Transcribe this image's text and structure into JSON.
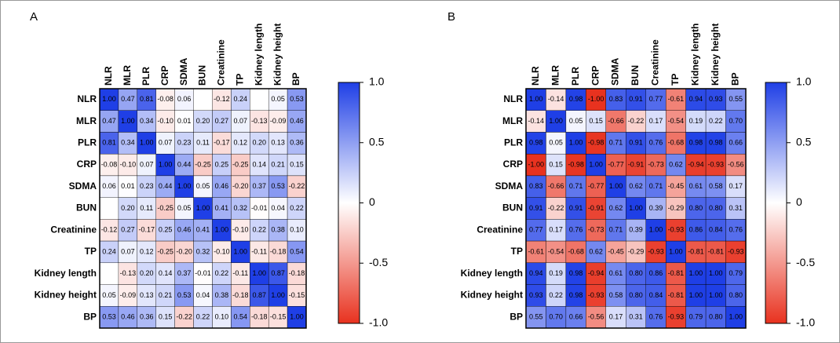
{
  "chart_data": [
    {
      "type": "heatmap",
      "title": "A",
      "categories": [
        "NLR",
        "MLR",
        "PLR",
        "CRP",
        "SDMA",
        "BUN",
        "Creatinine",
        "TP",
        "Kidney length",
        "Kidney height",
        "BP"
      ],
      "values": [
        [
          1.0,
          0.47,
          0.81,
          -0.08,
          0.06,
          null,
          -0.12,
          0.24,
          null,
          0.05,
          0.53
        ],
        [
          0.47,
          1.0,
          0.34,
          -0.1,
          0.01,
          0.2,
          0.27,
          0.07,
          -0.13,
          -0.09,
          0.46
        ],
        [
          0.81,
          0.34,
          1.0,
          0.07,
          0.23,
          0.11,
          -0.17,
          0.12,
          0.2,
          0.13,
          0.36
        ],
        [
          -0.08,
          -0.1,
          0.07,
          1.0,
          0.44,
          -0.25,
          0.25,
          -0.25,
          0.14,
          0.21,
          0.15
        ],
        [
          0.06,
          0.01,
          0.23,
          0.44,
          1.0,
          0.05,
          0.46,
          -0.2,
          0.37,
          0.53,
          -0.22
        ],
        [
          null,
          0.2,
          0.11,
          -0.25,
          0.05,
          1.0,
          0.41,
          0.32,
          -0.01,
          0.04,
          0.22
        ],
        [
          -0.12,
          0.27,
          -0.17,
          0.25,
          0.46,
          0.41,
          1.0,
          -0.1,
          0.22,
          0.38,
          0.1
        ],
        [
          0.24,
          0.07,
          0.12,
          -0.25,
          -0.2,
          0.32,
          -0.1,
          1.0,
          -0.11,
          -0.18,
          0.54
        ],
        [
          null,
          -0.13,
          0.2,
          0.14,
          0.37,
          -0.01,
          0.22,
          -0.11,
          1.0,
          0.87,
          -0.18
        ],
        [
          0.05,
          -0.09,
          0.13,
          0.21,
          0.53,
          0.04,
          0.38,
          -0.18,
          0.87,
          1.0,
          -0.15
        ],
        [
          0.53,
          0.46,
          0.36,
          0.15,
          -0.22,
          0.22,
          0.1,
          0.54,
          -0.18,
          -0.15,
          1.0
        ]
      ],
      "value_labels": [
        [
          "1.00",
          "0.47",
          "0.81",
          "-0.08",
          "0.06",
          null,
          "-0.12",
          "0.24",
          null,
          "0.05",
          "0.53"
        ],
        [
          "0.47",
          "1.00",
          "0.34",
          "-0.10",
          "0.01",
          "0.20",
          "0.27",
          "0.07",
          "-0.13",
          "-0.09",
          "0.46"
        ],
        [
          "0.81",
          "0.34",
          "1.00",
          "0.07",
          "0.23",
          "0.11",
          "-0.17",
          "0.12",
          "0.20",
          "0.13",
          "0.36"
        ],
        [
          "-0.08",
          "-0.10",
          "0.07",
          "1.00",
          "0.44",
          "-0.25",
          "0.25",
          "-0.25",
          "0.14",
          "0.21",
          "0.15"
        ],
        [
          "0.06",
          "0.01",
          "0.23",
          "0.44",
          "1.00",
          "0.05",
          "0.46",
          "-0.20",
          "0.37",
          "0.53",
          "-0.22"
        ],
        [
          null,
          "0.20",
          "0.11",
          "-0.25",
          "0.05",
          "1.00",
          "0.41",
          "0.32",
          "-0.01",
          "0.04",
          "0.22"
        ],
        [
          "-0.12",
          "0.27",
          "-0.17",
          "0.25",
          "0.46",
          "0.41",
          "1.00",
          "-0.10",
          "0.22",
          "0.38",
          "0.10"
        ],
        [
          "0.24",
          "0.07",
          "0.12",
          "-0.25",
          "-0.20",
          "0.32",
          "-0.10",
          "1.00",
          "-0.11",
          "-0.18",
          "0.54"
        ],
        [
          null,
          "-0.13",
          "0.20",
          "0.14",
          "0.37",
          "-0.01",
          "0.22",
          "-0.11",
          "1.00",
          "0.87",
          "-0.18"
        ],
        [
          "0.05",
          "-0.09",
          "0.13",
          "0.21",
          "0.53",
          "0.04",
          "0.38",
          "-0.18",
          "0.87",
          "1.00",
          "-0.15"
        ],
        [
          "0.53",
          "0.46",
          "0.36",
          "0.15",
          "-0.22",
          "0.22",
          "0.10",
          "0.54",
          "-0.18",
          "-0.15",
          "1.00"
        ]
      ],
      "clim": [
        -1,
        1
      ],
      "cticks": [
        {
          "value": 1,
          "label": "1.0"
        },
        0.5,
        0,
        -0.5,
        {
          "value": -1,
          "label": "-1.0"
        }
      ],
      "colors": {
        "low": "#e8321f",
        "mid": "#ffffff",
        "high": "#1f3fe6"
      }
    },
    {
      "type": "heatmap",
      "title": "B",
      "categories": [
        "NLR",
        "MLR",
        "PLR",
        "CRP",
        "SDMA",
        "BUN",
        "Creatinine",
        "TP",
        "Kidney length",
        "Kidney height",
        "BP"
      ],
      "values": [
        [
          1.0,
          -0.14,
          0.98,
          -1.0,
          0.83,
          0.91,
          0.77,
          -0.61,
          0.94,
          0.93,
          0.55
        ],
        [
          -0.14,
          1.0,
          0.05,
          0.15,
          -0.66,
          -0.22,
          0.17,
          -0.54,
          0.19,
          0.22,
          0.7
        ],
        [
          0.98,
          0.05,
          1.0,
          -0.98,
          0.71,
          0.91,
          0.76,
          -0.68,
          0.98,
          0.98,
          0.66
        ],
        [
          -1.0,
          0.15,
          -0.98,
          1.0,
          -0.77,
          -0.91,
          -0.73,
          0.62,
          -0.94,
          -0.93,
          -0.56
        ],
        [
          0.83,
          -0.66,
          0.71,
          -0.77,
          1.0,
          0.62,
          0.71,
          -0.45,
          0.61,
          0.58,
          0.17
        ],
        [
          0.91,
          -0.22,
          0.91,
          -0.91,
          0.62,
          1.0,
          0.39,
          -0.29,
          0.8,
          0.8,
          0.31
        ],
        [
          0.77,
          0.17,
          0.76,
          -0.73,
          0.71,
          0.39,
          1.0,
          -0.93,
          0.86,
          0.84,
          0.76
        ],
        [
          -0.61,
          -0.54,
          -0.68,
          0.62,
          -0.45,
          -0.29,
          -0.93,
          1.0,
          -0.81,
          -0.81,
          -0.93
        ],
        [
          0.94,
          0.19,
          0.98,
          -0.94,
          0.61,
          0.8,
          0.86,
          -0.81,
          1.0,
          1.0,
          0.79
        ],
        [
          0.93,
          0.22,
          0.98,
          -0.93,
          0.58,
          0.8,
          0.84,
          -0.81,
          1.0,
          1.0,
          0.8
        ],
        [
          0.55,
          0.7,
          0.66,
          -0.56,
          0.17,
          0.31,
          0.76,
          -0.93,
          0.79,
          0.8,
          1.0
        ]
      ],
      "value_labels": [
        [
          "1.00",
          "-0.14",
          "0.98",
          "-1.00",
          "0.83",
          "0.91",
          "0.77",
          "-0.61",
          "0.94",
          "0.93",
          "0.55"
        ],
        [
          "-0.14",
          "1.00",
          "0.05",
          "0.15",
          "-0.66",
          "-0.22",
          "0.17",
          "-0.54",
          "0.19",
          "0.22",
          "0.70"
        ],
        [
          "0.98",
          "0.05",
          "1.00",
          "-0.98",
          "0.71",
          "0.91",
          "0.76",
          "-0.68",
          "0.98",
          "0.98",
          "0.66"
        ],
        [
          "-1.00",
          "0.15",
          "-0.98",
          "1.00",
          "-0.77",
          "-0.91",
          "-0.73",
          "0.62",
          "-0.94",
          "-0.93",
          "-0.56"
        ],
        [
          "0.83",
          "-0.66",
          "0.71",
          "-0.77",
          "1.00",
          "0.62",
          "0.71",
          "-0.45",
          "0.61",
          "0.58",
          "0.17"
        ],
        [
          "0.91",
          "-0.22",
          "0.91",
          "-0.91",
          "0.62",
          "1.00",
          "0.39",
          "-0.29",
          "0.80",
          "0.80",
          "0.31"
        ],
        [
          "0.77",
          "0.17",
          "0.76",
          "-0.73",
          "0.71",
          "0.39",
          "1.00",
          "-0.93",
          "0.86",
          "0.84",
          "0.76"
        ],
        [
          "-0.61",
          "-0.54",
          "-0.68",
          "0.62",
          "-0.45",
          "-0.29",
          "-0.93",
          "1.00",
          "-0.81",
          "-0.81",
          "-0.93"
        ],
        [
          "0.94",
          "0.19",
          "0.98",
          "-0.94",
          "0.61",
          "0.80",
          "0.86",
          "-0.81",
          "1.00",
          "1.00",
          "0.79"
        ],
        [
          "0.93",
          "0.22",
          "0.98",
          "-0.93",
          "0.58",
          "0.80",
          "0.84",
          "-0.81",
          "1.00",
          "1.00",
          "0.80"
        ],
        [
          "0.55",
          "0.70",
          "0.66",
          "-0.56",
          "0.17",
          "0.31",
          "0.76",
          "-0.93",
          "0.79",
          "0.80",
          "1.00"
        ]
      ],
      "clim": [
        -1,
        1
      ],
      "cticks": [
        {
          "value": 1,
          "label": "1.0"
        },
        0.5,
        0,
        -0.5,
        {
          "value": -1,
          "label": "-1.0"
        }
      ],
      "colors": {
        "low": "#e8321f",
        "mid": "#ffffff",
        "high": "#1f3fe6"
      }
    }
  ]
}
